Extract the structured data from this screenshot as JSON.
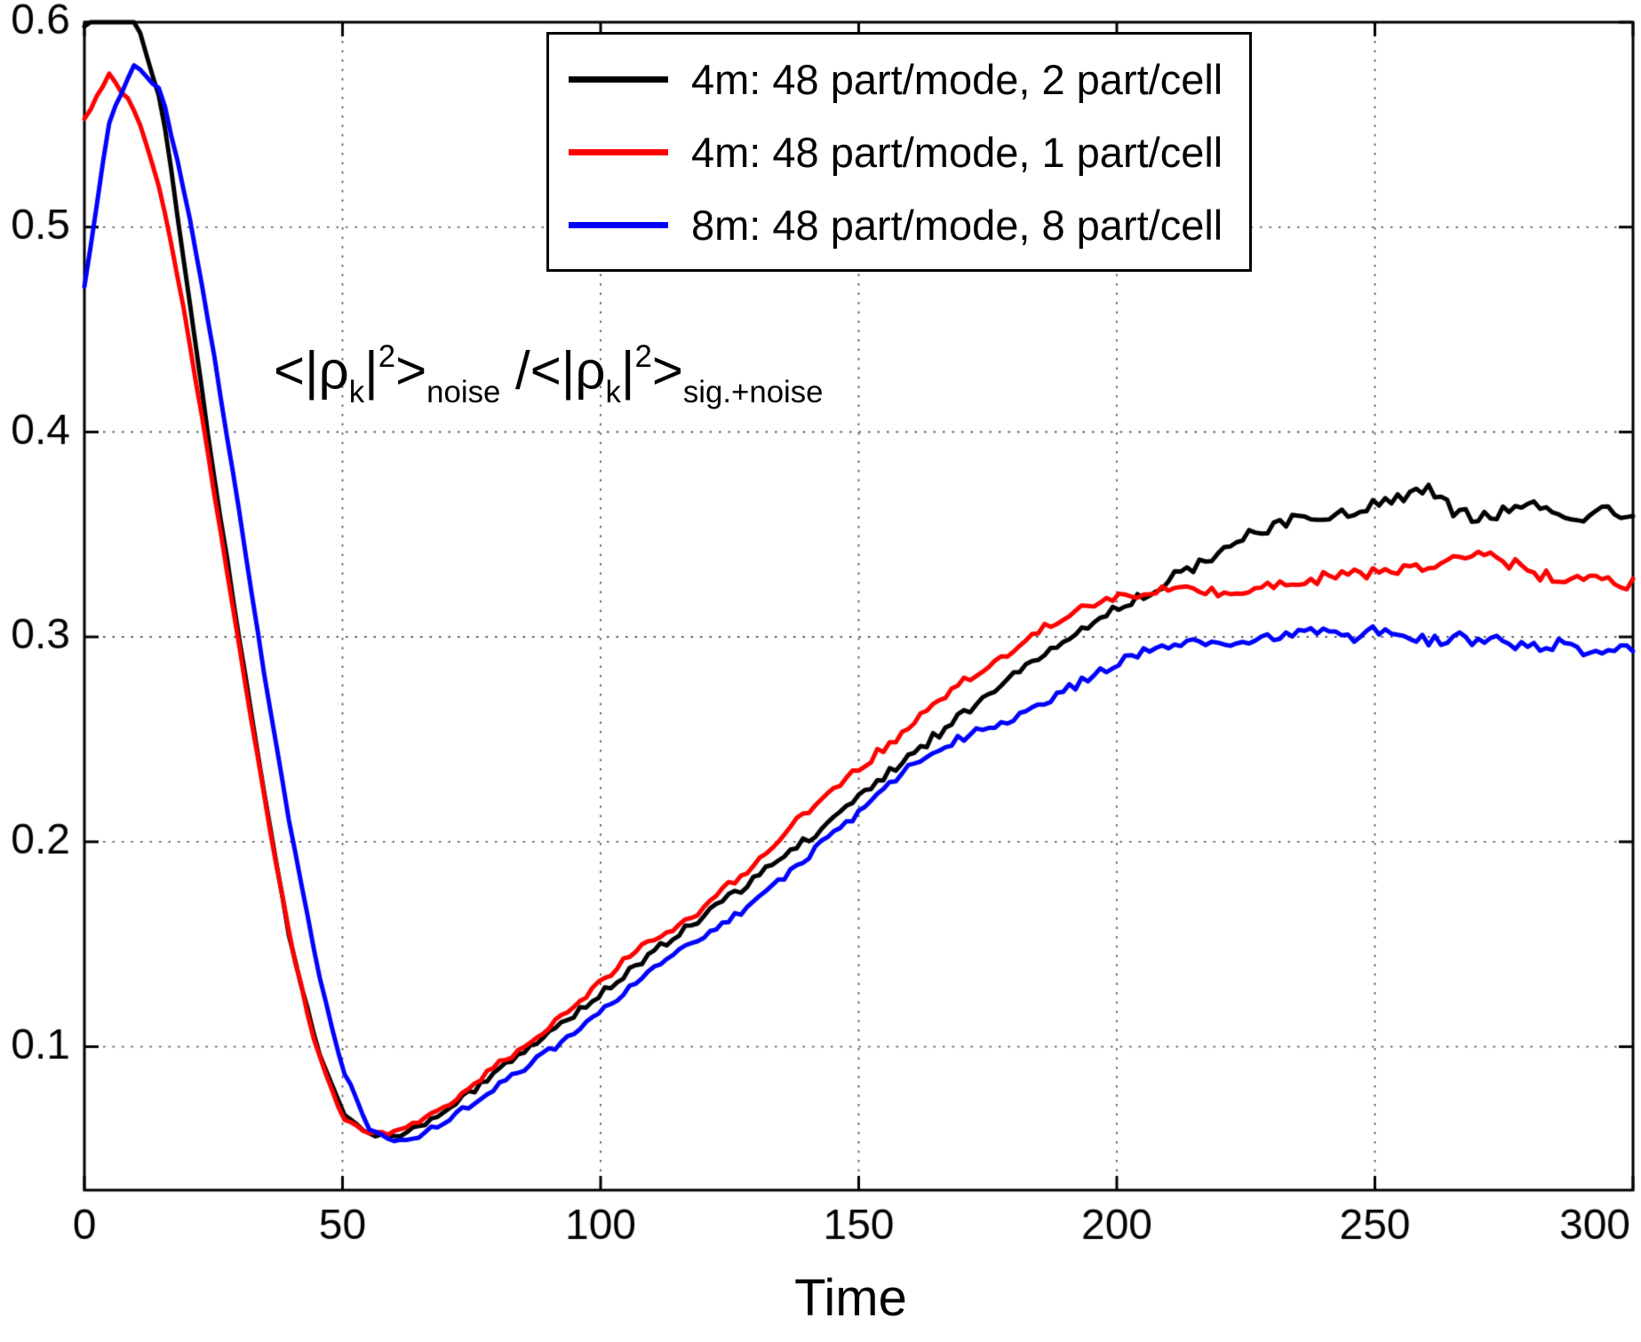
{
  "figure": {
    "background": "#ffffff",
    "axis_color": "#000000",
    "grid_style": "dotted",
    "annotation_text": "<|rho_k|^2>_noise / <|rho_k|^2>_sig.+noise",
    "annotation": {
      "segments": [
        {
          "t": "<|ρ",
          "s": "base"
        },
        {
          "t": "k",
          "s": "sub"
        },
        {
          "t": "|",
          "s": "base"
        },
        {
          "t": "2",
          "s": "sup"
        },
        {
          "t": ">",
          "s": "base"
        },
        {
          "t": "noise",
          "s": "sub"
        },
        {
          "t": " /<|ρ",
          "s": "base"
        },
        {
          "t": "k",
          "s": "sub"
        },
        {
          "t": "|",
          "s": "base"
        },
        {
          "t": "2",
          "s": "sup"
        },
        {
          "t": ">",
          "s": "base"
        },
        {
          "t": "sig.+noise",
          "s": "sub"
        }
      ]
    }
  },
  "chart_data": {
    "type": "line",
    "title": "",
    "xlabel": "Time",
    "ylabel": "",
    "xlim": [
      0,
      300
    ],
    "ylim": [
      0.03,
      0.6
    ],
    "xticks": [
      0,
      50,
      100,
      150,
      200,
      250,
      300
    ],
    "yticks": [
      0.1,
      0.2,
      0.3,
      0.4,
      0.5,
      0.6
    ],
    "grid": "dotted",
    "legend_position": "top-right",
    "x": [
      0,
      5,
      10,
      15,
      20,
      25,
      30,
      35,
      40,
      45,
      50,
      55,
      60,
      65,
      70,
      75,
      80,
      85,
      90,
      95,
      100,
      105,
      110,
      115,
      120,
      125,
      130,
      135,
      140,
      145,
      150,
      155,
      160,
      165,
      170,
      175,
      180,
      185,
      190,
      195,
      200,
      205,
      210,
      215,
      220,
      225,
      230,
      235,
      240,
      245,
      250,
      255,
      260,
      265,
      270,
      275,
      280,
      285,
      290,
      295,
      300
    ],
    "series": [
      {
        "name": "4m: 48 part/mode, 2 part/cell",
        "color": "#000000",
        "values": [
          0.598,
          0.612,
          0.602,
          0.56,
          0.47,
          0.38,
          0.3,
          0.22,
          0.15,
          0.1,
          0.068,
          0.057,
          0.056,
          0.061,
          0.069,
          0.078,
          0.088,
          0.097,
          0.106,
          0.116,
          0.126,
          0.136,
          0.146,
          0.155,
          0.164,
          0.173,
          0.182,
          0.192,
          0.201,
          0.211,
          0.222,
          0.232,
          0.242,
          0.252,
          0.262,
          0.272,
          0.281,
          0.29,
          0.299,
          0.306,
          0.314,
          0.32,
          0.328,
          0.334,
          0.342,
          0.349,
          0.354,
          0.358,
          0.357,
          0.361,
          0.364,
          0.368,
          0.372,
          0.362,
          0.358,
          0.361,
          0.365,
          0.36,
          0.357,
          0.362,
          0.36
        ]
      },
      {
        "name": "4m: 48 part/mode, 1 part/cell",
        "color": "#ff0000",
        "values": [
          0.553,
          0.575,
          0.556,
          0.515,
          0.45,
          0.372,
          0.295,
          0.22,
          0.15,
          0.098,
          0.066,
          0.058,
          0.058,
          0.063,
          0.071,
          0.081,
          0.091,
          0.1,
          0.11,
          0.121,
          0.131,
          0.143,
          0.152,
          0.158,
          0.168,
          0.179,
          0.19,
          0.202,
          0.215,
          0.226,
          0.236,
          0.246,
          0.256,
          0.268,
          0.278,
          0.287,
          0.294,
          0.303,
          0.31,
          0.315,
          0.319,
          0.322,
          0.324,
          0.324,
          0.322,
          0.324,
          0.326,
          0.327,
          0.329,
          0.33,
          0.331,
          0.332,
          0.334,
          0.337,
          0.34,
          0.337,
          0.332,
          0.329,
          0.327,
          0.33,
          0.325
        ]
      },
      {
        "name": "8m: 48 part/mode, 8 part/cell",
        "color": "#0000ff",
        "values": [
          0.47,
          0.555,
          0.58,
          0.565,
          0.51,
          0.44,
          0.36,
          0.28,
          0.205,
          0.14,
          0.09,
          0.06,
          0.053,
          0.057,
          0.064,
          0.072,
          0.081,
          0.089,
          0.098,
          0.107,
          0.117,
          0.127,
          0.137,
          0.146,
          0.154,
          0.162,
          0.171,
          0.181,
          0.193,
          0.204,
          0.214,
          0.226,
          0.237,
          0.246,
          0.251,
          0.255,
          0.26,
          0.266,
          0.274,
          0.281,
          0.288,
          0.293,
          0.297,
          0.299,
          0.295,
          0.297,
          0.3,
          0.302,
          0.304,
          0.3,
          0.303,
          0.301,
          0.298,
          0.3,
          0.298,
          0.297,
          0.294,
          0.297,
          0.292,
          0.294,
          0.296
        ]
      }
    ]
  }
}
